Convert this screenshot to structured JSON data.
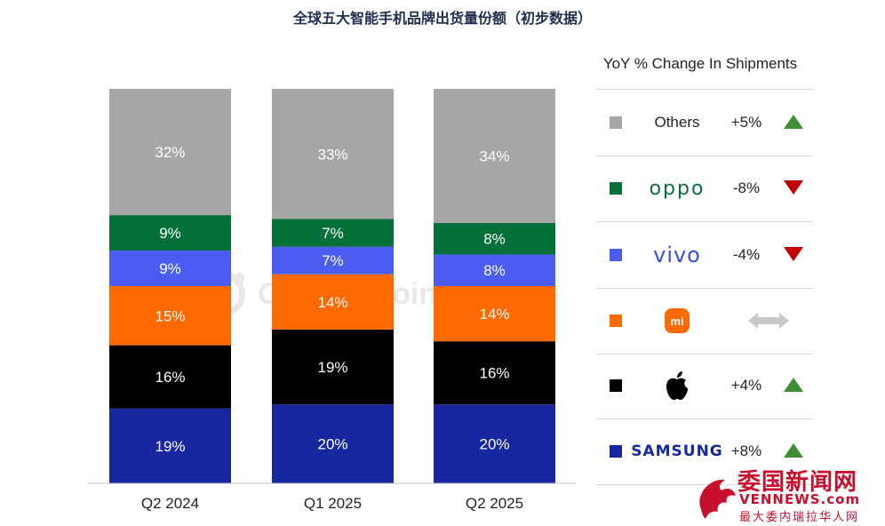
{
  "title": "全球五大智能手机品牌出货量份额（初步数据）",
  "chart_data": {
    "type": "bar",
    "stacked": true,
    "categories": [
      "Q2 2024",
      "Q1 2025",
      "Q2 2025"
    ],
    "series": [
      {
        "name": "SAMSUNG",
        "color": "#1727a0",
        "values": [
          19,
          20,
          20
        ],
        "labels": [
          "19%",
          "20%",
          "20%"
        ]
      },
      {
        "name": "Apple",
        "color": "#000000",
        "values": [
          16,
          19,
          16
        ],
        "labels": [
          "16%",
          "19%",
          "16%"
        ]
      },
      {
        "name": "Xiaomi",
        "color": "#ff6a00",
        "values": [
          15,
          14,
          14
        ],
        "labels": [
          "15%",
          "14%",
          "14%"
        ]
      },
      {
        "name": "vivo",
        "color": "#4a5df0",
        "values": [
          9,
          7,
          8
        ],
        "labels": [
          "9%",
          "7%",
          "8%"
        ]
      },
      {
        "name": "oppo",
        "color": "#06703a",
        "values": [
          9,
          7,
          8
        ],
        "labels": [
          "9%",
          "7%",
          "8%"
        ]
      },
      {
        "name": "Others",
        "color": "#a6a6a6",
        "values": [
          32,
          33,
          34
        ],
        "labels": [
          "32%",
          "33%",
          "34%"
        ]
      }
    ],
    "ylim": [
      0,
      100
    ],
    "grid": false,
    "legend_placement": "right"
  },
  "legend": {
    "title": "YoY % Change In Shipments",
    "rows": [
      {
        "brand": "Others",
        "color": "#a6a6a6",
        "change": "+5%",
        "trend": "up"
      },
      {
        "brand": "oppo",
        "color": "#06703a",
        "change": "-8%",
        "trend": "down"
      },
      {
        "brand": "vivo",
        "color": "#4a5df0",
        "change": "-4%",
        "trend": "down"
      },
      {
        "brand": "mi",
        "color": "#ff6a00",
        "change": "",
        "trend": "flat"
      },
      {
        "brand": "apple",
        "color": "#000000",
        "change": "+4%",
        "trend": "up"
      },
      {
        "brand": "SAMSUNG",
        "color": "#1727a0",
        "change": "+8%",
        "trend": "up"
      }
    ]
  },
  "watermark": "Counterpoint",
  "site_logo": {
    "line1": "委国新闻网",
    "line2": "VENNEWS.com",
    "line3": "最大委内瑞拉华人网"
  },
  "colors": {
    "up": "#3e8e34",
    "down": "#c00000",
    "flat": "#c8c8c8",
    "title": "#1f2d4e"
  }
}
